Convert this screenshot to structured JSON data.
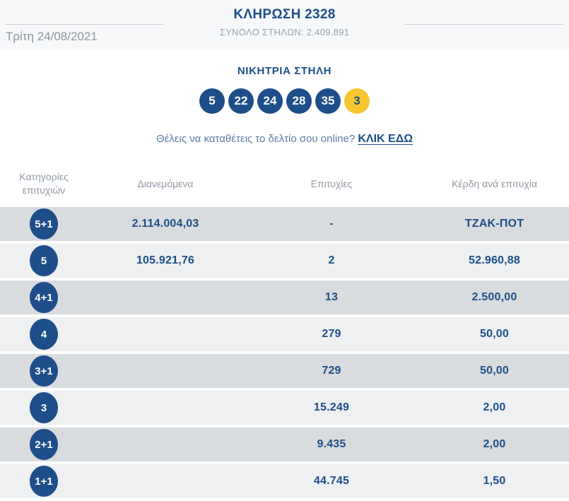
{
  "header": {
    "title": "ΚΛΗΡΩΣΗ 2328",
    "date": "Τρίτη 24/08/2021",
    "total_columns": "ΣΥΝΟΛΟ ΣΤΗΛΩΝ: 2.409.891"
  },
  "winning": {
    "heading": "ΝΙΚΗΤΡΙΑ ΣΤΗΛΗ",
    "numbers": [
      "5",
      "22",
      "24",
      "28",
      "35"
    ],
    "bonus": "3"
  },
  "promo": {
    "question": "Θέλεις να καταθέτεις το δελτίο σου online?",
    "link_label": "ΚΛΙΚ ΕΔΩ"
  },
  "table": {
    "headers": {
      "category_line1": "Κατηγορίες",
      "category_line2": "επιτυχιών",
      "distributed": "Διανεμόμενα",
      "winners": "Επιτυχίες",
      "prize_per_winner": "Κέρδη ανά επιτυχία"
    },
    "rows": [
      {
        "category": "5+1",
        "distributed": "2.114.004,03",
        "winners": "-",
        "prize": "ΤΖΑΚ-ΠΟΤ"
      },
      {
        "category": "5",
        "distributed": "105.921,76",
        "winners": "2",
        "prize": "52.960,88"
      },
      {
        "category": "4+1",
        "distributed": "",
        "winners": "13",
        "prize": "2.500,00"
      },
      {
        "category": "4",
        "distributed": "",
        "winners": "279",
        "prize": "50,00"
      },
      {
        "category": "3+1",
        "distributed": "",
        "winners": "729",
        "prize": "50,00"
      },
      {
        "category": "3",
        "distributed": "",
        "winners": "15.249",
        "prize": "2,00"
      },
      {
        "category": "2+1",
        "distributed": "",
        "winners": "9.435",
        "prize": "2,00"
      },
      {
        "category": "1+1",
        "distributed": "",
        "winners": "44.745",
        "prize": "1,50"
      }
    ]
  },
  "colors": {
    "accent_blue": "#1d4e89",
    "bonus_yellow": "#f8c52e",
    "row_light": "#eef0f1",
    "row_dark": "#d9dcde",
    "top_band": "#f7f8f9",
    "muted_text": "#9099a4"
  }
}
